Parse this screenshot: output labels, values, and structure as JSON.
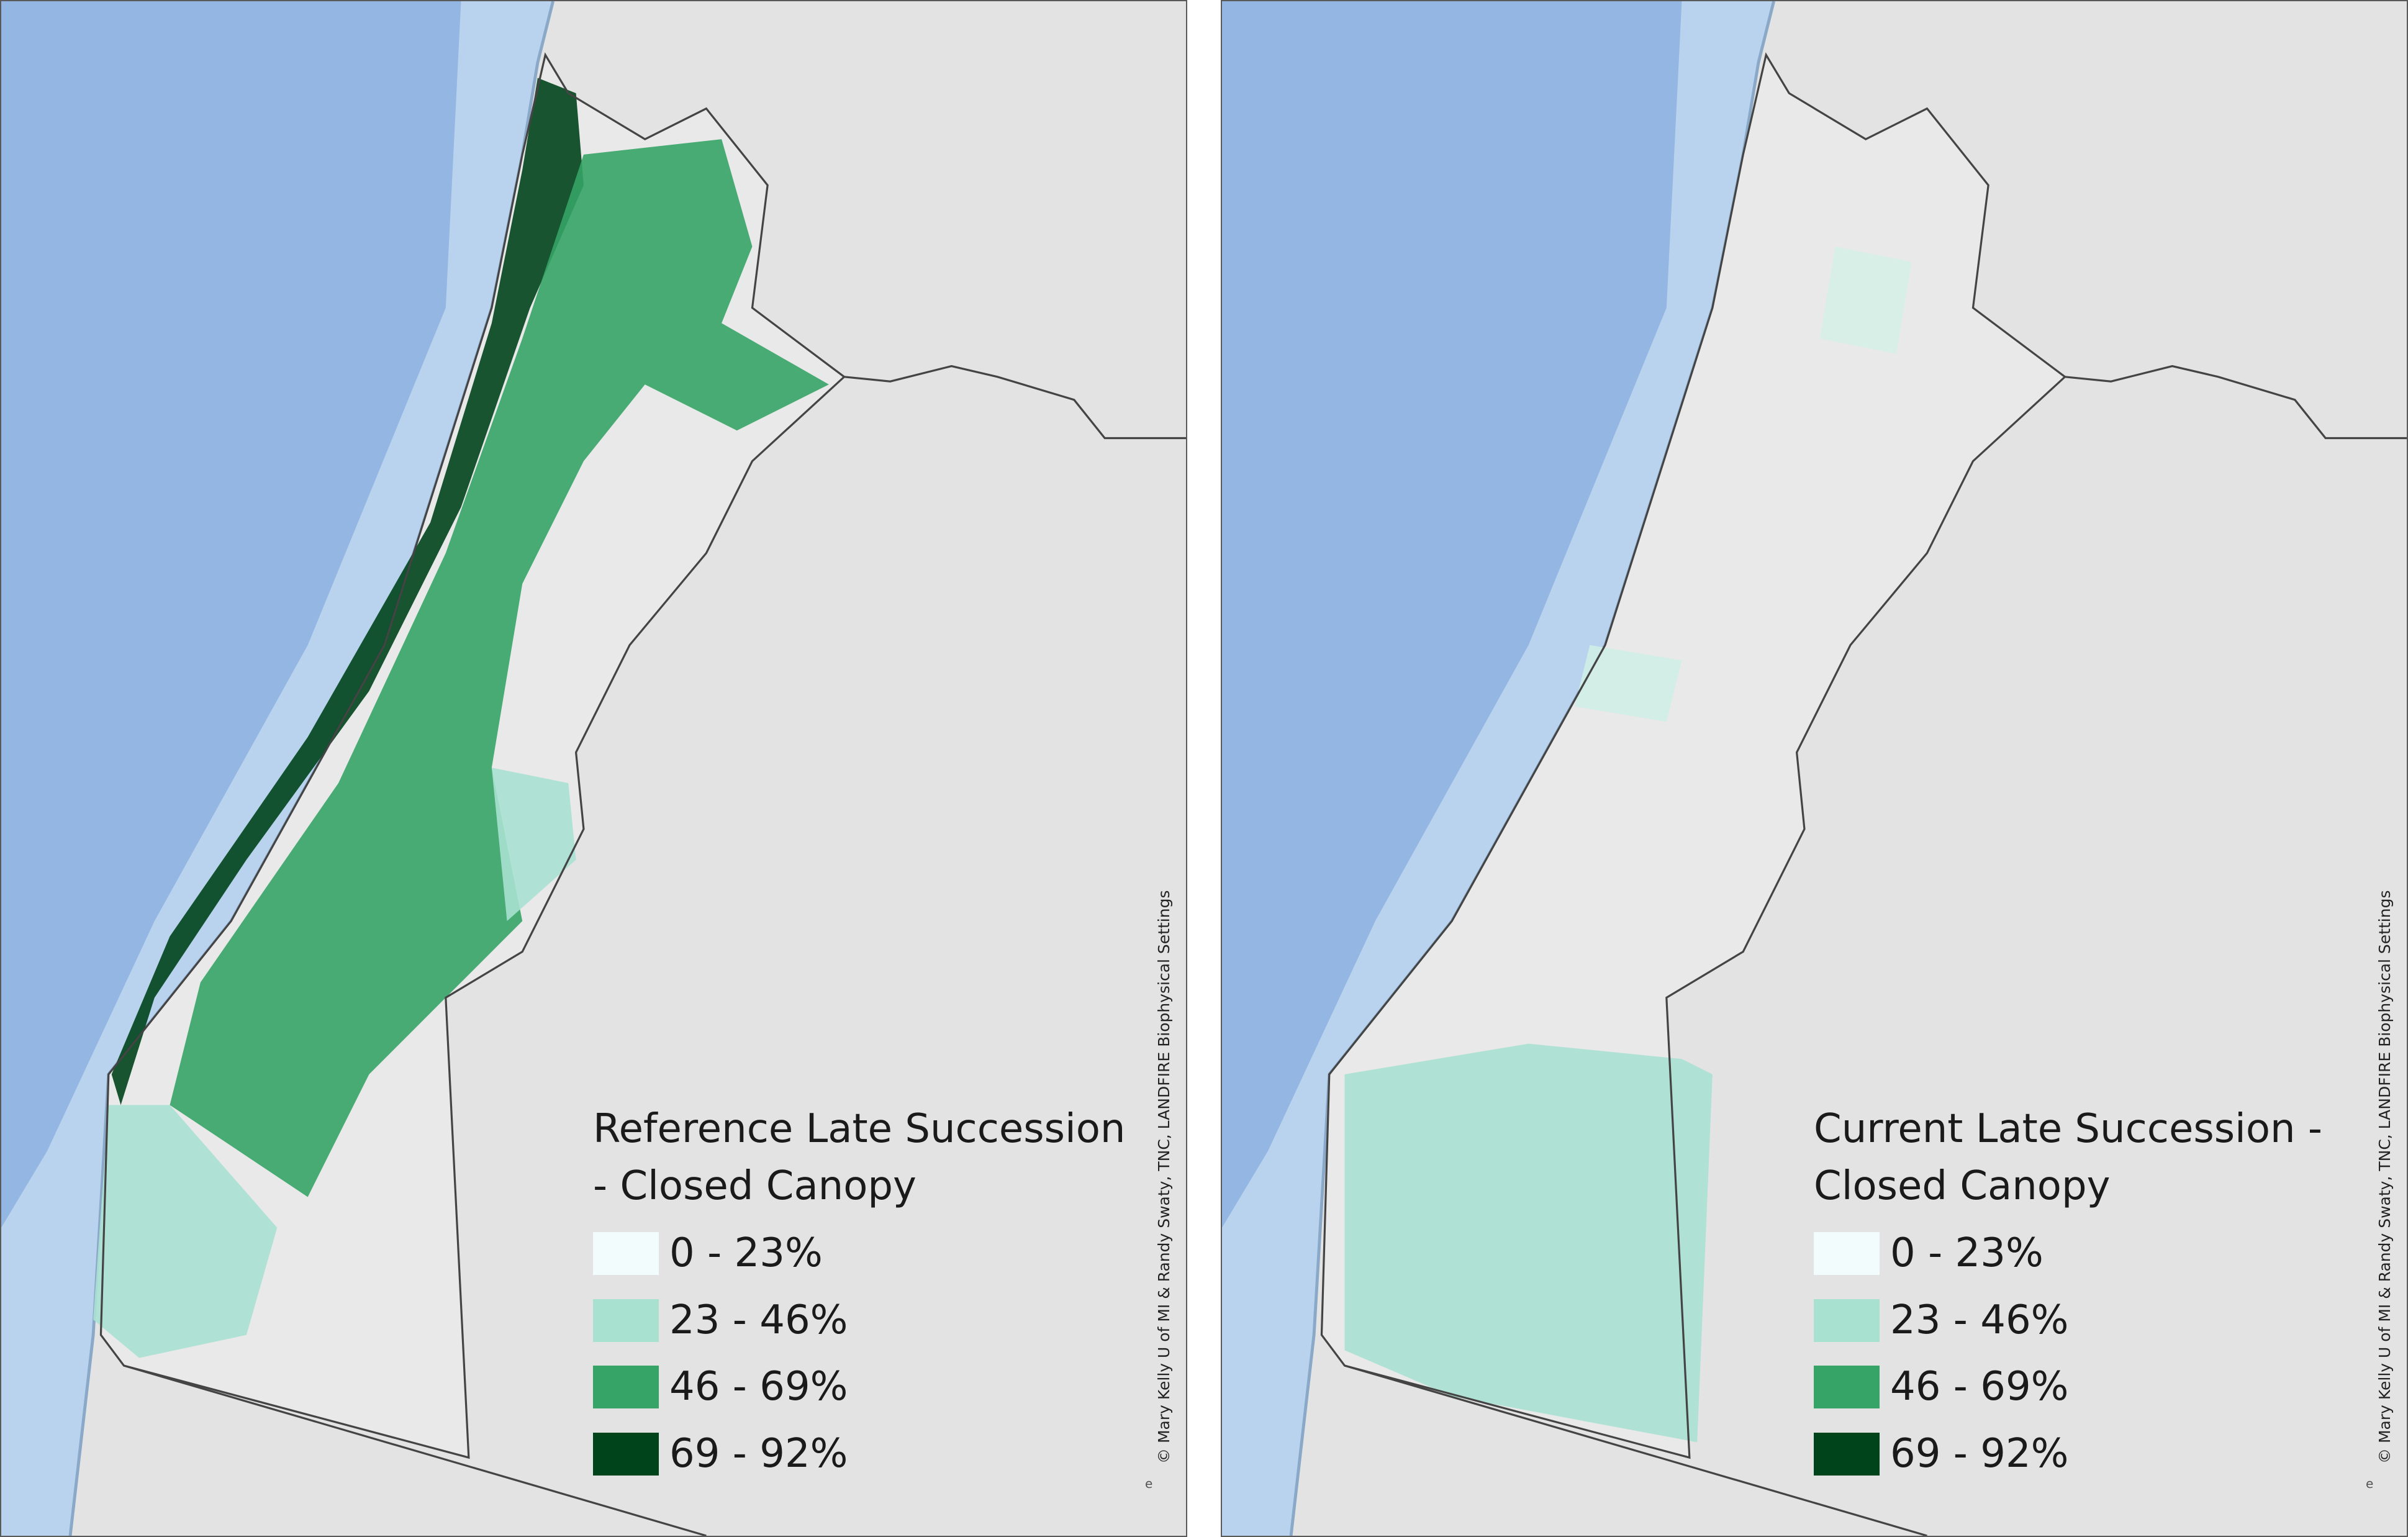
{
  "panels": [
    {
      "legend": {
        "title": "Reference Late Succession - Closed Canopy",
        "items": [
          {
            "label": "0 - 23%",
            "color": "#f3fcfc"
          },
          {
            "label": "23 - 46%",
            "color": "#a9e1d1"
          },
          {
            "label": "46 - 69%",
            "color": "#35a466"
          },
          {
            "label": "69 - 92%",
            "color": "#00441b"
          }
        ]
      },
      "credit": "© Mary Kelly U of MI & Randy Swaty, TNC, LANDFIRE Biophysical Settings",
      "mark": "e"
    },
    {
      "legend": {
        "title": "Current Late Succession - Closed Canopy",
        "items": [
          {
            "label": "0 - 23%",
            "color": "#f3fcfc"
          },
          {
            "label": "23 - 46%",
            "color": "#a9e1d1"
          },
          {
            "label": "46 - 69%",
            "color": "#35a466"
          },
          {
            "label": "69 - 92%",
            "color": "#00441b"
          }
        ]
      },
      "credit": "© Mary Kelly U of MI & Randy Swaty, TNC, LANDFIRE Biophysical Settings",
      "mark": "e"
    }
  ]
}
